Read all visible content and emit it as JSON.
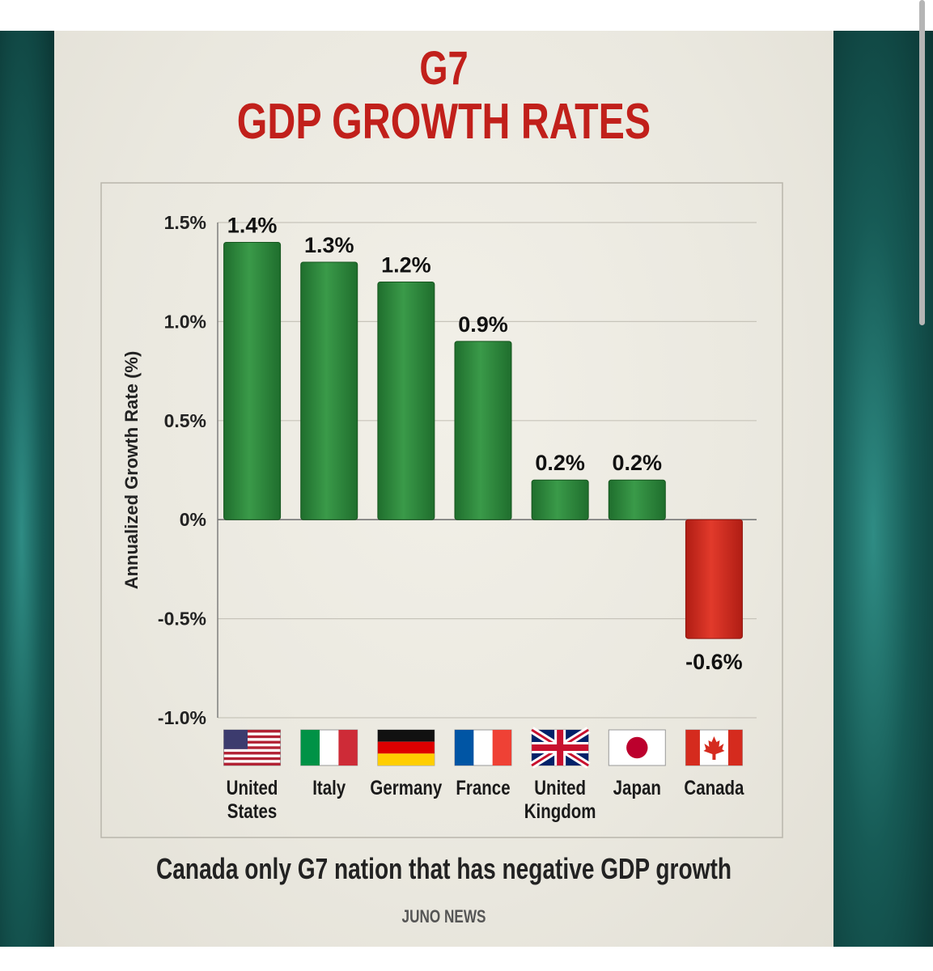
{
  "chart_data": {
    "type": "bar",
    "title": "G7",
    "subtitle": "GDP GROWTH RATES",
    "ylabel": "Annualized Growth Rate (%)",
    "xlabel": "",
    "ylim": [
      -1.0,
      1.5
    ],
    "yticks": [
      1.5,
      1.0,
      0.5,
      0,
      -0.5,
      -1.0
    ],
    "ytick_labels": [
      "1.5%",
      "1.0%",
      "0.5%",
      "0%",
      "-0.5%",
      "-1.0%"
    ],
    "categories": [
      "United States",
      "Italy",
      "Germany",
      "France",
      "United Kingdom",
      "Japan",
      "Canada"
    ],
    "category_lines": [
      [
        "United",
        "States"
      ],
      [
        "Italy"
      ],
      [
        "Germany"
      ],
      [
        "France"
      ],
      [
        "United",
        "Kingdom"
      ],
      [
        "Japan"
      ],
      [
        "Canada"
      ]
    ],
    "values": [
      1.4,
      1.3,
      1.2,
      0.9,
      0.2,
      0.2,
      -0.6
    ],
    "data_labels": [
      "1.4%",
      "1.3%",
      "1.2%",
      "0.9%",
      "0.2%",
      "0.2%",
      "-0.6%"
    ],
    "flags": [
      "us-flag-icon",
      "italy-flag-icon",
      "germany-flag-icon",
      "france-flag-icon",
      "uk-flag-icon",
      "japan-flag-icon",
      "canada-flag-icon"
    ],
    "grid": true,
    "colors": {
      "positive": "#2e8b3e",
      "negative": "#d42a1e",
      "title": "#c1201b"
    },
    "caption": "Canada only G7 nation that has negative GDP growth",
    "source": "JUNO NEWS"
  }
}
